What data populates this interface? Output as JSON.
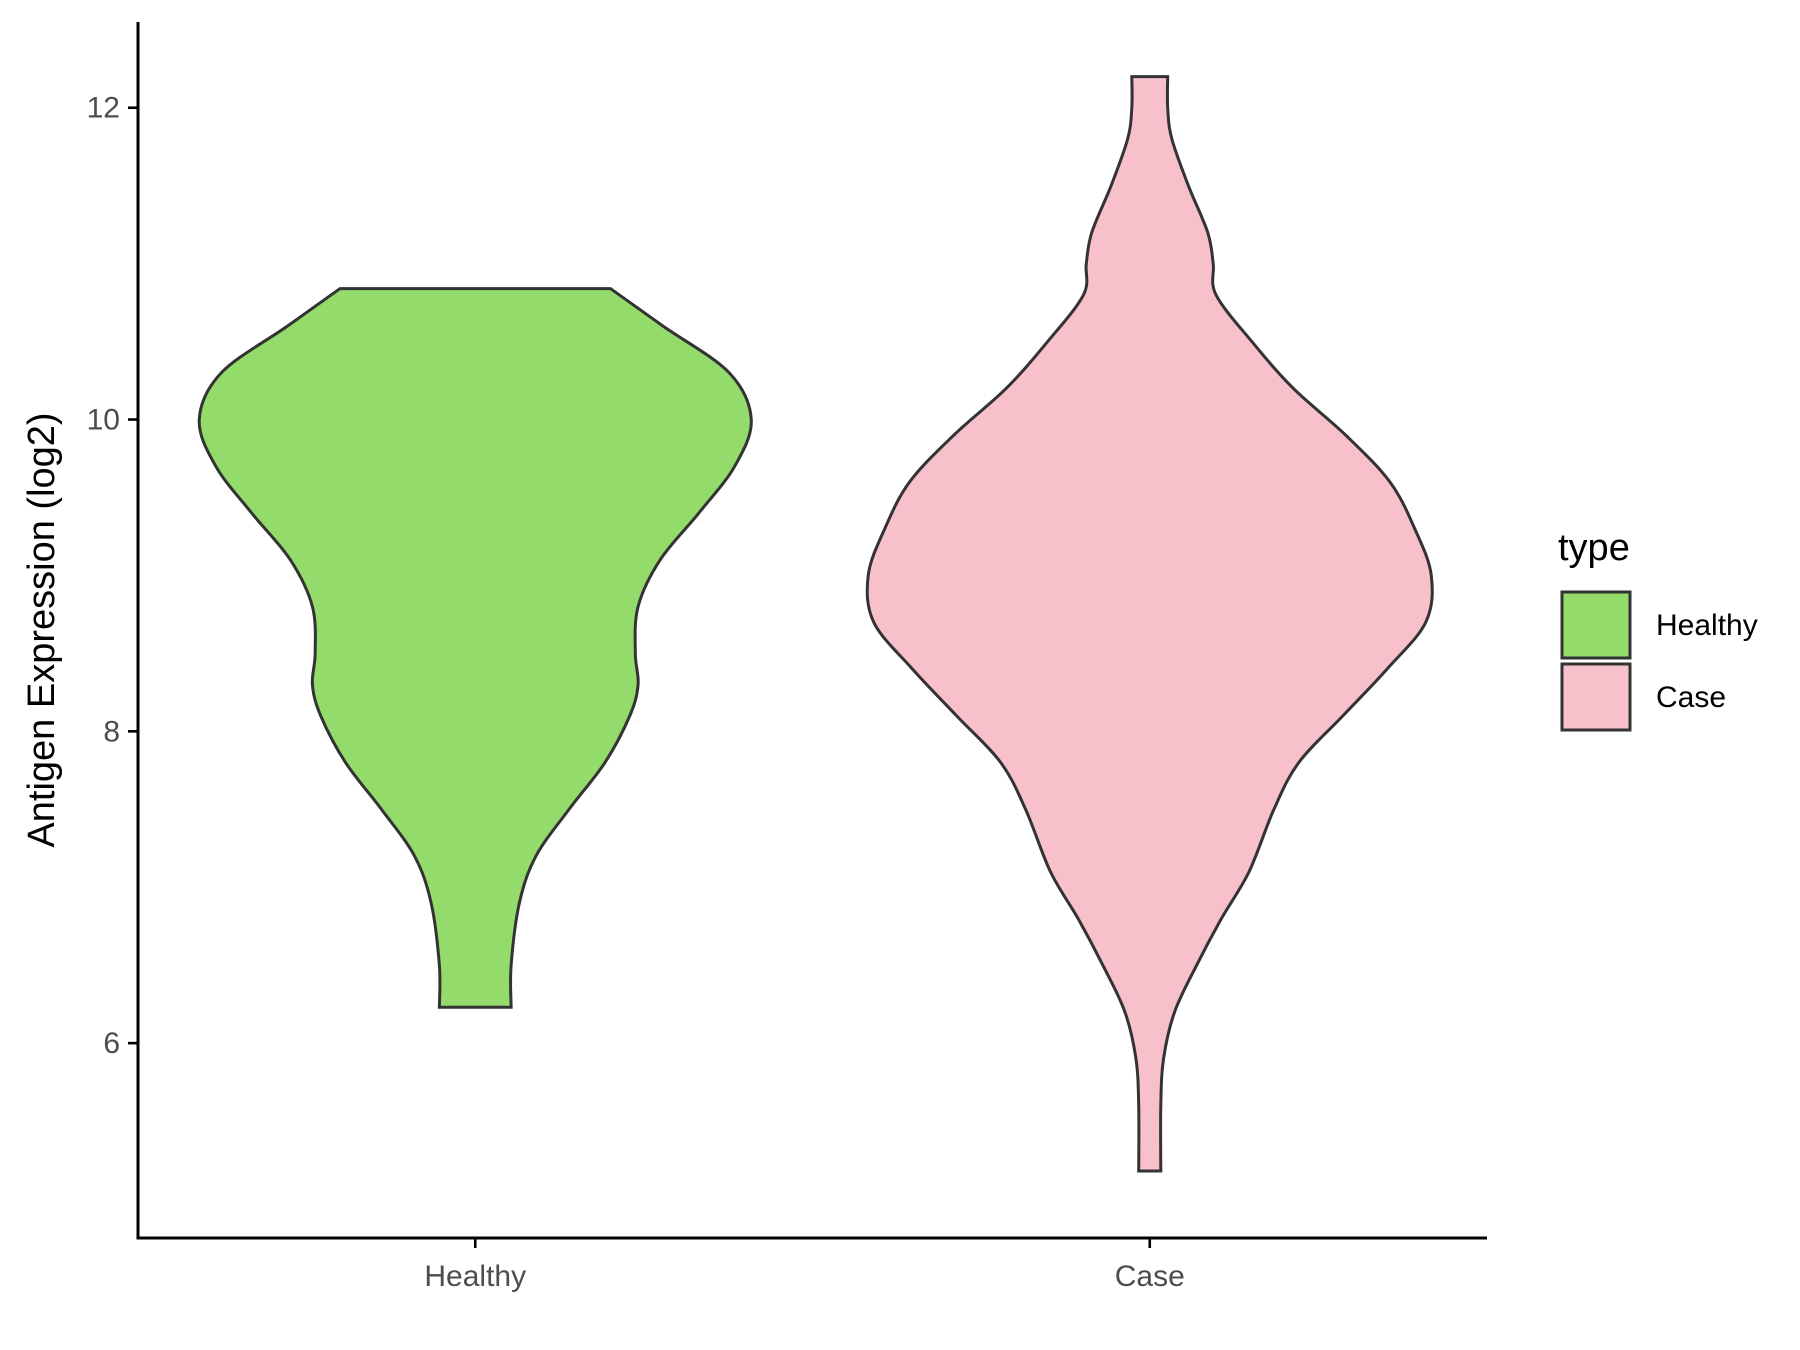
{
  "chart_data": {
    "type": "violin",
    "xlabel": "",
    "ylabel": "Antigen Expression (log2)",
    "ylim": [
      4.75,
      12.55
    ],
    "yticks": [
      6,
      8,
      10,
      12
    ],
    "categories": [
      "Healthy",
      "Case"
    ],
    "grid": false,
    "legend": {
      "title": "type",
      "position": "right",
      "entries": [
        {
          "label": "Healthy",
          "color": "#93dc6b"
        },
        {
          "label": "Case",
          "color": "#f7c0cb"
        }
      ]
    },
    "series": [
      {
        "name": "Healthy",
        "color": "#93dc6b",
        "min": 6.23,
        "max": 10.84,
        "density": [
          [
            6.23,
            0.13
          ],
          [
            6.5,
            0.13
          ],
          [
            6.9,
            0.16
          ],
          [
            7.2,
            0.22
          ],
          [
            7.5,
            0.34
          ],
          [
            7.8,
            0.47
          ],
          [
            8.1,
            0.56
          ],
          [
            8.3,
            0.59
          ],
          [
            8.5,
            0.58
          ],
          [
            8.8,
            0.59
          ],
          [
            9.1,
            0.67
          ],
          [
            9.4,
            0.81
          ],
          [
            9.7,
            0.94
          ],
          [
            10.0,
            1.0
          ],
          [
            10.3,
            0.92
          ],
          [
            10.6,
            0.68
          ],
          [
            10.84,
            0.49
          ]
        ]
      },
      {
        "name": "Case",
        "color": "#f7c0cb",
        "min": 5.18,
        "max": 12.2,
        "density": [
          [
            5.18,
            0.04
          ],
          [
            5.6,
            0.04
          ],
          [
            5.9,
            0.05
          ],
          [
            6.2,
            0.09
          ],
          [
            6.5,
            0.17
          ],
          [
            6.8,
            0.26
          ],
          [
            7.1,
            0.36
          ],
          [
            7.5,
            0.45
          ],
          [
            7.8,
            0.54
          ],
          [
            8.1,
            0.7
          ],
          [
            8.4,
            0.86
          ],
          [
            8.7,
            1.0
          ],
          [
            9.0,
            1.02
          ],
          [
            9.3,
            0.96
          ],
          [
            9.6,
            0.87
          ],
          [
            9.9,
            0.71
          ],
          [
            10.2,
            0.52
          ],
          [
            10.5,
            0.37
          ],
          [
            10.8,
            0.24
          ],
          [
            11.0,
            0.23
          ],
          [
            11.2,
            0.21
          ],
          [
            11.5,
            0.14
          ],
          [
            11.8,
            0.08
          ],
          [
            12.0,
            0.065
          ],
          [
            12.2,
            0.065
          ]
        ]
      }
    ]
  }
}
